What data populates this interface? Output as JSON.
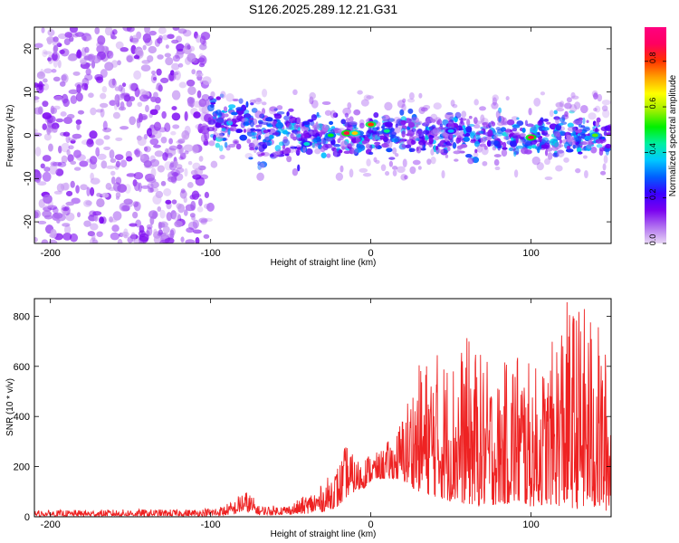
{
  "page_title": "S126.2025.289.12.21.G31",
  "chart_data": [
    {
      "type": "heatmap",
      "xlabel": "Height of straight line (km)",
      "ylabel": "Frequency (Hz)",
      "xlim": [
        -210,
        150
      ],
      "ylim": [
        -25,
        25
      ],
      "xticks": [
        -200,
        -100,
        0,
        100
      ],
      "yticks": [
        -20,
        -10,
        0,
        10,
        20
      ],
      "colorbar": {
        "label": "Normalized spectral amplitude",
        "range": [
          0,
          0.95
        ],
        "ticks": [
          0.0,
          0.2,
          0.4,
          0.6,
          0.8
        ],
        "colormap": [
          "#e8d6f5",
          "#b070f0",
          "#7a00f0",
          "#3a00ff",
          "#0060ff",
          "#00c8ff",
          "#00f0a0",
          "#00f000",
          "#a0f000",
          "#ffff00",
          "#ffa000",
          "#ff3000",
          "#ff0060",
          "#ff0080"
        ]
      },
      "regions": [
        {
          "name": "noise",
          "x_range": [
            -210,
            -100
          ],
          "freq_range": [
            -25,
            25
          ],
          "level": 0.08
        },
        {
          "name": "signal-band",
          "x_range": [
            -100,
            150
          ],
          "freq_center": 0,
          "freq_halfwidth": 4,
          "level": 0.3
        }
      ],
      "hotspots": [
        {
          "x": -15,
          "freq": 0.5,
          "level": 0.85
        },
        {
          "x": -10,
          "freq": 0.5,
          "level": 0.7
        },
        {
          "x": 0,
          "freq": 2.5,
          "level": 0.8
        },
        {
          "x": 100,
          "freq": -0.5,
          "level": 0.85
        },
        {
          "x": -25,
          "freq": 0,
          "level": 0.5
        },
        {
          "x": 140,
          "freq": 0,
          "level": 0.55
        },
        {
          "x": 10,
          "freq": 1,
          "level": 0.45
        },
        {
          "x": -40,
          "freq": -2,
          "level": 0.4
        },
        {
          "x": 50,
          "freq": 1,
          "level": 0.35
        }
      ]
    },
    {
      "type": "line",
      "xlabel": "Height of straight line (km)",
      "ylabel": "SNR (10 * v/v)",
      "xlim": [
        -210,
        150
      ],
      "ylim": [
        0,
        870
      ],
      "xticks": [
        -200,
        -100,
        0,
        100
      ],
      "yticks": [
        0,
        200,
        400,
        600,
        800
      ],
      "series": [
        {
          "name": "SNR",
          "color": "#ee2222",
          "envelope": {
            "x": [
              -210,
              -150,
              -110,
              -95,
              -85,
              -80,
              -75,
              -70,
              -60,
              -50,
              -40,
              -30,
              -25,
              -20,
              -15,
              -10,
              -5,
              0,
              5,
              10,
              15,
              20,
              25,
              30,
              40,
              50,
              60,
              70,
              80,
              90,
              100,
              110,
              120,
              130,
              140,
              150
            ],
            "low": [
              3,
              3,
              3,
              4,
              10,
              20,
              15,
              8,
              8,
              10,
              12,
              20,
              30,
              40,
              80,
              100,
              110,
              140,
              150,
              150,
              150,
              140,
              120,
              100,
              80,
              60,
              50,
              40,
              50,
              50,
              40,
              50,
              40,
              30,
              30,
              20
            ],
            "high": [
              25,
              30,
              30,
              40,
              65,
              110,
              95,
              45,
              45,
              50,
              90,
              130,
              175,
              215,
              300,
              230,
              240,
              260,
              255,
              300,
              320,
              420,
              530,
              610,
              670,
              640,
              720,
              650,
              560,
              720,
              600,
              620,
              870,
              860,
              820,
              600
            ]
          },
          "annotations": [
            {
              "x": 148,
              "value": 620
            }
          ]
        }
      ]
    }
  ]
}
